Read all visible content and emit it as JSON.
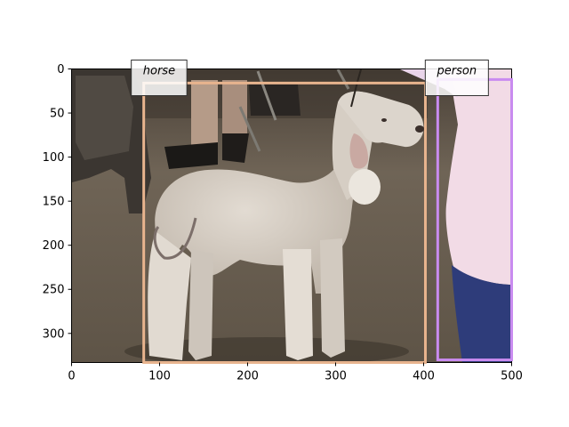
{
  "image": {
    "subject": "Bedlington terrier standing in profile on a dirt floor, people's legs and a dark dog in the background, a person in a pink top and blue jeans at right",
    "palette": {
      "ground": "#6f6456",
      "ground_dark": "#4f463c",
      "dog_fur": "#d8d0c6",
      "dog_shadow": "#b2a89c",
      "pink_top": "#f2dbe6",
      "jeans": "#2e3c7a"
    }
  },
  "axes": {
    "x_range": [
      0,
      500
    ],
    "y_range": [
      0,
      333
    ],
    "y_inverted": true,
    "x_ticks": [
      "0",
      "100",
      "200",
      "300",
      "400",
      "500"
    ],
    "y_ticks": [
      "0",
      "50",
      "100",
      "150",
      "200",
      "250",
      "300"
    ]
  },
  "boxes": [
    {
      "label": "horse",
      "color": "#e8b48e",
      "x0": 82,
      "y0": 16,
      "x1": 402,
      "y1": 333
    },
    {
      "label": "person",
      "color": "#c98bf0",
      "x0": 416,
      "y0": 12,
      "x1": 500,
      "y1": 330
    }
  ]
}
